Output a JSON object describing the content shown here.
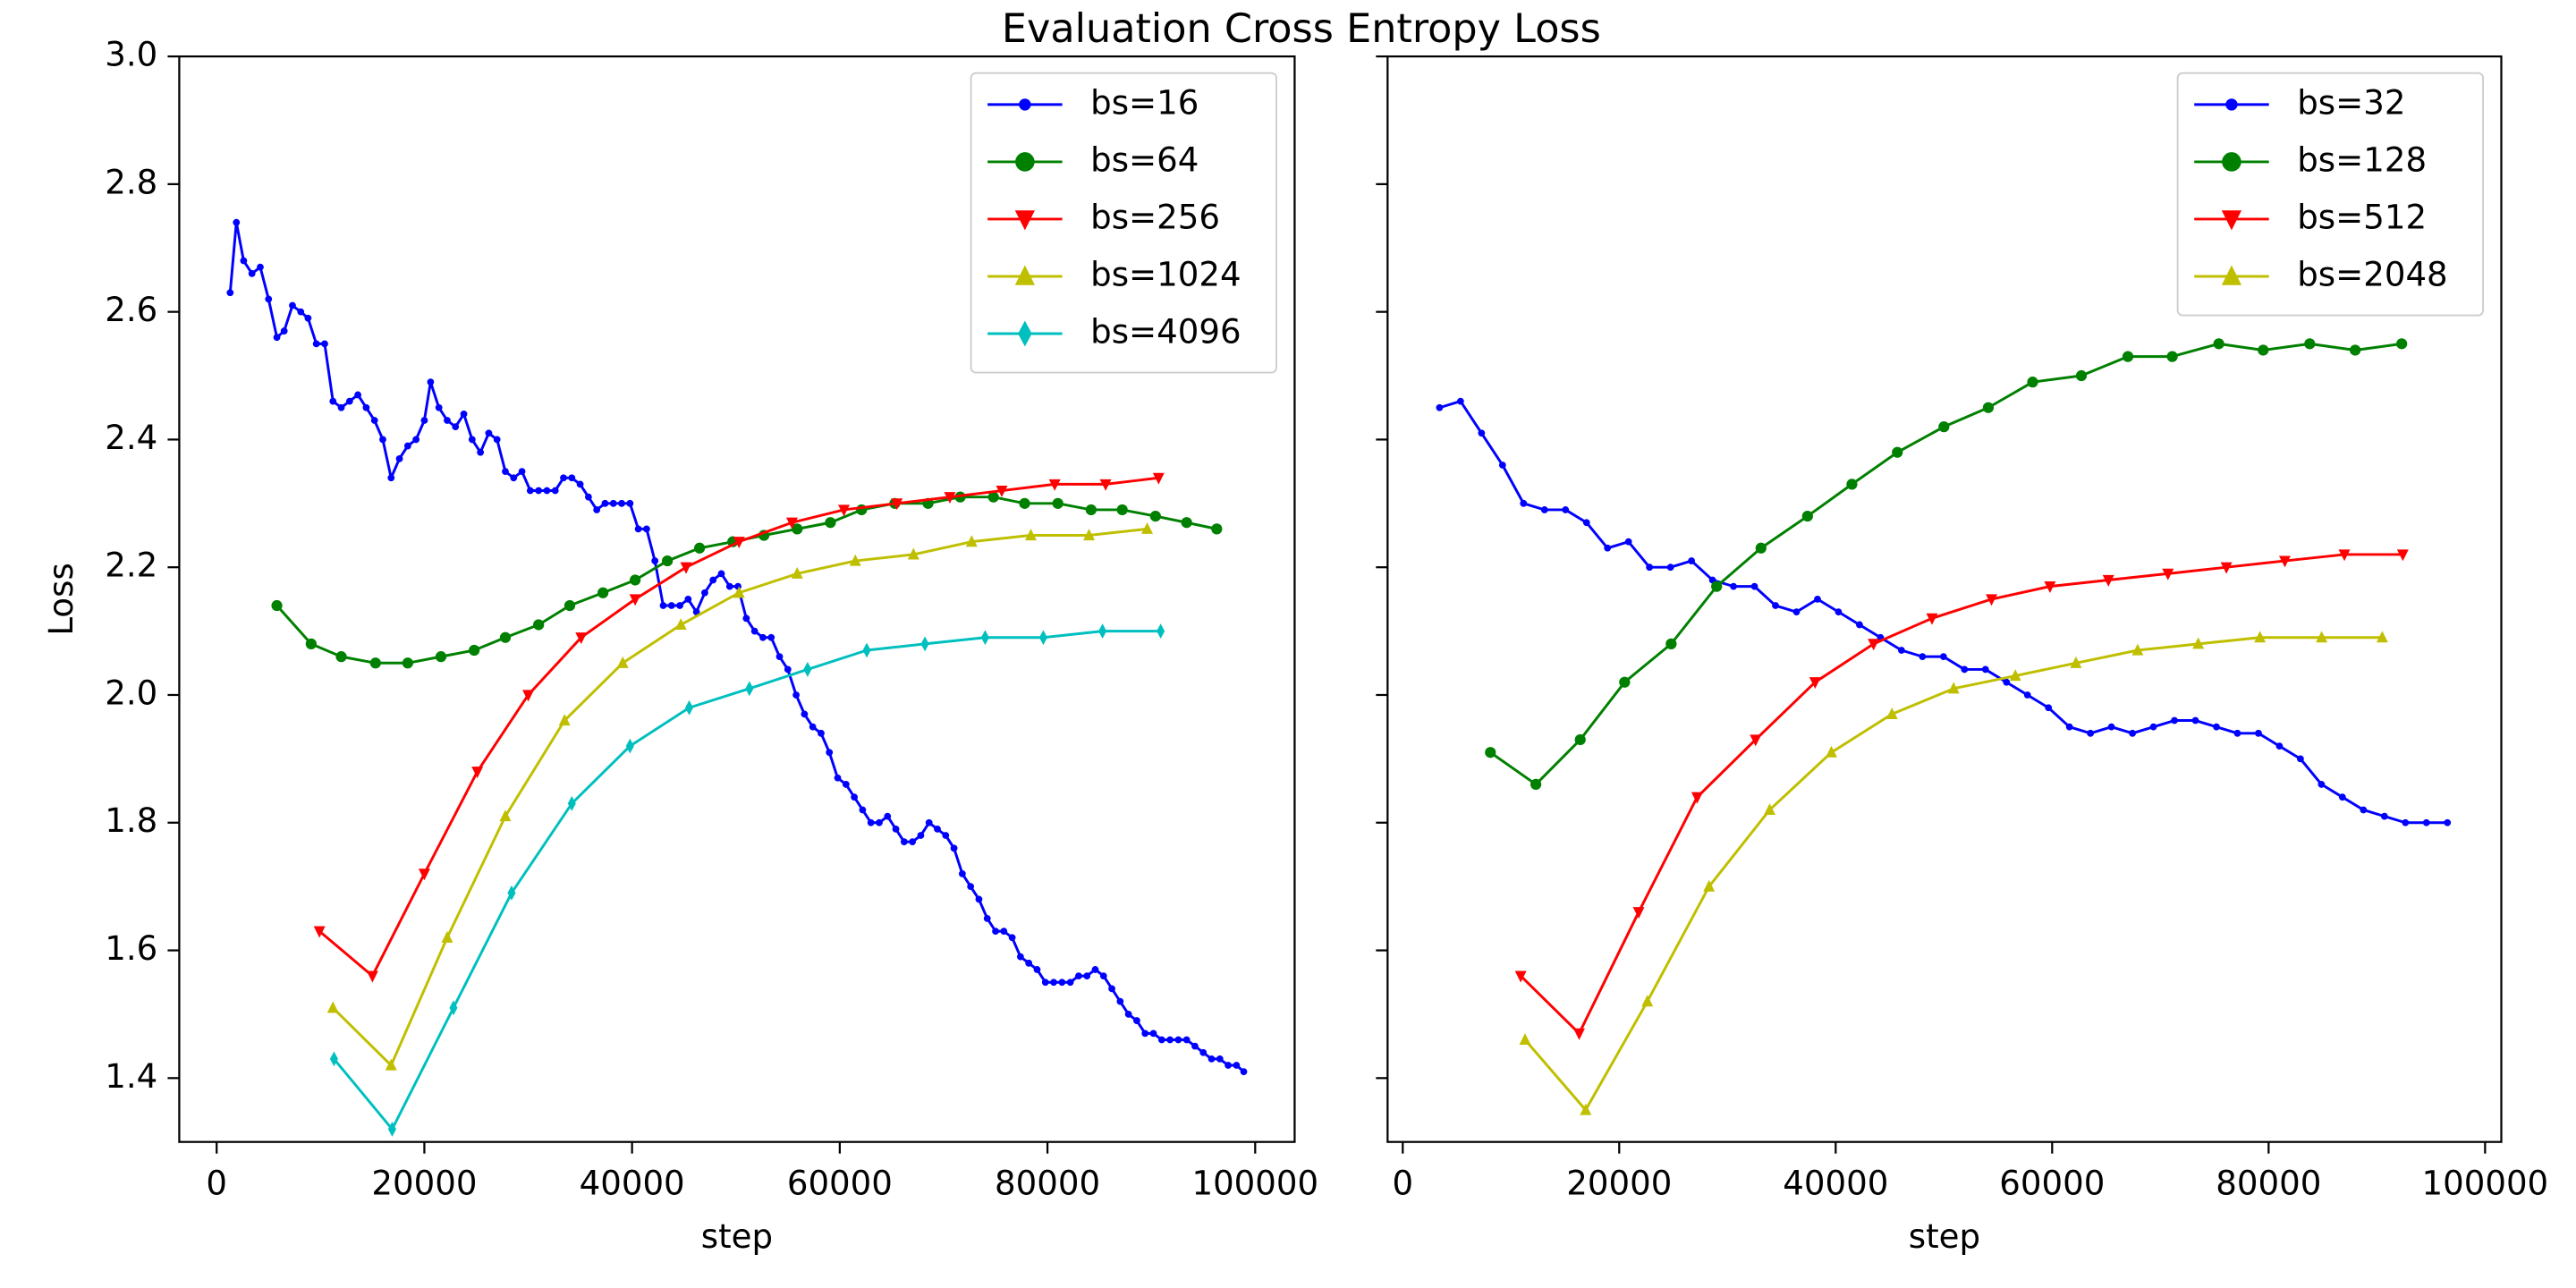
{
  "title": "Evaluation Cross Entropy Loss",
  "chart_data": [
    {
      "type": "line",
      "xlabel": "step",
      "ylabel": "Loss",
      "xlim": [
        -3600,
        103800
      ],
      "ylim": [
        1.3,
        3.0
      ],
      "xticks": [
        0,
        20000,
        40000,
        60000,
        80000,
        100000
      ],
      "yticks": [
        1.4,
        1.6,
        1.8,
        {
          "value": 2,
          "label": "2.0"
        },
        2.2,
        2.4,
        2.6,
        2.8,
        {
          "value": 3,
          "label": "3.0"
        }
      ],
      "legend": "upper right",
      "series": [
        {
          "name": "bs=16",
          "color": "#0000ff",
          "marker": ".",
          "x": [
            1300,
            1900,
            2600,
            3400,
            4200,
            5000,
            5800,
            6500,
            7300,
            8100,
            8800,
            9600,
            10400,
            11200,
            12000,
            12800,
            13600,
            14400,
            15200,
            16000,
            16800,
            17600,
            18400,
            19200,
            20000,
            20600,
            21400,
            22200,
            23000,
            23800,
            24600,
            25400,
            26200,
            27000,
            27800,
            28600,
            29400,
            30200,
            31000,
            31800,
            32600,
            33400,
            34200,
            35000,
            35800,
            36600,
            37400,
            38200,
            39000,
            39800,
            40600,
            41400,
            42200,
            43000,
            43800,
            44600,
            45400,
            46200,
            47000,
            47800,
            48600,
            49400,
            50200,
            51000,
            51800,
            52600,
            53400,
            54200,
            55000,
            55800,
            56600,
            57400,
            58200,
            59000,
            59800,
            60600,
            61400,
            62200,
            63000,
            63800,
            64600,
            65400,
            66200,
            67000,
            67800,
            68600,
            69400,
            70200,
            71000,
            71800,
            72600,
            73400,
            74200,
            75000,
            75800,
            76600,
            77400,
            78200,
            79000,
            79800,
            80600,
            81400,
            82200,
            83000,
            83800,
            84600,
            85400,
            86200,
            87000,
            87800,
            88600,
            89400,
            90200,
            91000,
            91800,
            92600,
            93400,
            94200,
            95000,
            95800,
            96600,
            97400,
            98200,
            98900
          ],
          "values": [
            2.63,
            2.74,
            2.68,
            2.66,
            2.67,
            2.62,
            2.56,
            2.57,
            2.61,
            2.6,
            2.59,
            2.55,
            2.55,
            2.46,
            2.45,
            2.46,
            2.47,
            2.45,
            2.43,
            2.4,
            2.34,
            2.37,
            2.39,
            2.4,
            2.43,
            2.49,
            2.45,
            2.43,
            2.42,
            2.44,
            2.4,
            2.38,
            2.41,
            2.4,
            2.35,
            2.34,
            2.35,
            2.32,
            2.32,
            2.32,
            2.32,
            2.34,
            2.34,
            2.33,
            2.31,
            2.29,
            2.3,
            2.3,
            2.3,
            2.3,
            2.26,
            2.26,
            2.21,
            2.14,
            2.14,
            2.14,
            2.15,
            2.13,
            2.16,
            2.18,
            2.19,
            2.17,
            2.17,
            2.12,
            2.1,
            2.09,
            2.09,
            2.06,
            2.04,
            2.0,
            1.97,
            1.95,
            1.94,
            1.91,
            1.87,
            1.86,
            1.84,
            1.82,
            1.8,
            1.8,
            1.81,
            1.79,
            1.77,
            1.77,
            1.78,
            1.8,
            1.79,
            1.78,
            1.76,
            1.72,
            1.7,
            1.68,
            1.65,
            1.63,
            1.63,
            1.62,
            1.59,
            1.58,
            1.57,
            1.55,
            1.55,
            1.55,
            1.55,
            1.56,
            1.56,
            1.57,
            1.56,
            1.54,
            1.52,
            1.5,
            1.49,
            1.47,
            1.47,
            1.46,
            1.46,
            1.46,
            1.46,
            1.45,
            1.44,
            1.43,
            1.43,
            1.42,
            1.42,
            1.41
          ]
        },
        {
          "name": "bs=64",
          "color": "#008000",
          "marker": "o",
          "x": [
            5800,
            9100,
            12000,
            15300,
            18400,
            21600,
            24800,
            27800,
            31000,
            34000,
            37200,
            40300,
            43400,
            46500,
            49700,
            52700,
            55900,
            59100,
            62100,
            65300,
            68500,
            71600,
            74800,
            77800,
            81000,
            84200,
            87200,
            90400,
            93400,
            96300
          ],
          "values": [
            2.14,
            2.08,
            2.06,
            2.05,
            2.05,
            2.06,
            2.07,
            2.09,
            2.11,
            2.14,
            2.16,
            2.18,
            2.21,
            2.23,
            2.24,
            2.25,
            2.26,
            2.27,
            2.29,
            2.3,
            2.3,
            2.31,
            2.31,
            2.3,
            2.3,
            2.29,
            2.29,
            2.28,
            2.27,
            2.26
          ]
        },
        {
          "name": "bs=256",
          "color": "#ff0000",
          "marker": "v",
          "x": [
            9900,
            15000,
            20000,
            25100,
            30000,
            35100,
            40300,
            45200,
            50300,
            55400,
            60400,
            65500,
            70600,
            75600,
            80700,
            85600,
            90700
          ],
          "values": [
            1.63,
            1.56,
            1.72,
            1.88,
            2.0,
            2.09,
            2.15,
            2.2,
            2.24,
            2.27,
            2.29,
            2.3,
            2.31,
            2.32,
            2.33,
            2.33,
            2.34
          ]
        },
        {
          "name": "bs=1024",
          "color": "#bfbf00",
          "marker": "^",
          "x": [
            11200,
            16800,
            22200,
            27800,
            33500,
            39100,
            44700,
            50300,
            55900,
            61500,
            67100,
            72700,
            78400,
            84000,
            89600
          ],
          "values": [
            1.51,
            1.42,
            1.62,
            1.81,
            1.96,
            2.05,
            2.11,
            2.16,
            2.19,
            2.21,
            2.22,
            2.24,
            2.25,
            2.25,
            2.26
          ]
        },
        {
          "name": "bs=4096",
          "color": "#00bfbf",
          "marker": "d",
          "x": [
            11300,
            16900,
            22800,
            28400,
            34200,
            39800,
            45500,
            51300,
            56900,
            62600,
            68200,
            74000,
            79600,
            85300,
            90900
          ],
          "values": [
            1.43,
            1.32,
            1.51,
            1.69,
            1.83,
            1.92,
            1.98,
            2.01,
            2.04,
            2.07,
            2.08,
            2.09,
            2.09,
            2.1,
            2.1
          ]
        }
      ]
    },
    {
      "type": "line",
      "xlabel": "step",
      "xlim": [
        -1400,
        101500
      ],
      "ylim": [
        1.3,
        3.0
      ],
      "xticks": [
        0,
        20000,
        40000,
        60000,
        80000,
        100000
      ],
      "yticks": [
        1.4,
        1.6,
        1.8,
        2,
        2.2,
        2.4,
        2.6,
        2.8,
        3
      ],
      "show_ytick_labels": false,
      "legend": "upper right",
      "series": [
        {
          "name": "bs=32",
          "color": "#0000ff",
          "marker": ".",
          "x": [
            3400,
            5340,
            7280,
            9220,
            11160,
            13100,
            15040,
            16980,
            18920,
            20860,
            22800,
            24740,
            26680,
            28620,
            30560,
            32500,
            34440,
            36380,
            38320,
            40260,
            42200,
            44140,
            46080,
            48020,
            49960,
            51900,
            53840,
            55780,
            57720,
            59660,
            61600,
            63540,
            65480,
            67420,
            69360,
            71300,
            73240,
            75180,
            77120,
            79060,
            81000,
            82940,
            84880,
            86820,
            88760,
            90700,
            92640,
            94580,
            96520
          ],
          "values": [
            2.45,
            2.46,
            2.41,
            2.36,
            2.3,
            2.29,
            2.29,
            2.27,
            2.23,
            2.24,
            2.2,
            2.2,
            2.21,
            2.18,
            2.17,
            2.17,
            2.14,
            2.13,
            2.15,
            2.13,
            2.11,
            2.09,
            2.07,
            2.06,
            2.06,
            2.04,
            2.04,
            2.02,
            2.0,
            1.98,
            1.95,
            1.94,
            1.95,
            1.94,
            1.95,
            1.96,
            1.96,
            1.95,
            1.94,
            1.94,
            1.92,
            1.9,
            1.86,
            1.84,
            1.82,
            1.81,
            1.8,
            1.8,
            1.8
          ]
        },
        {
          "name": "bs=128",
          "color": "#008000",
          "marker": "o",
          "x": [
            8100,
            12300,
            16400,
            20500,
            24800,
            29000,
            33100,
            37400,
            41500,
            45700,
            50000,
            54100,
            58200,
            62700,
            67000,
            71100,
            75400,
            79500,
            83800,
            88000,
            92300
          ],
          "values": [
            1.91,
            1.86,
            1.93,
            2.02,
            2.08,
            2.17,
            2.23,
            2.28,
            2.33,
            2.38,
            2.42,
            2.45,
            2.49,
            2.5,
            2.53,
            2.53,
            2.55,
            2.54,
            2.55,
            2.54,
            2.55
          ]
        },
        {
          "name": "bs=512",
          "color": "#ff0000",
          "marker": "v",
          "x": [
            10900,
            16300,
            21800,
            27200,
            32600,
            38100,
            43500,
            48900,
            54400,
            59800,
            65200,
            70700,
            76100,
            81500,
            87000,
            92400
          ],
          "values": [
            1.56,
            1.47,
            1.66,
            1.84,
            1.93,
            2.02,
            2.08,
            2.12,
            2.15,
            2.17,
            2.18,
            2.19,
            2.2,
            2.21,
            2.22,
            2.22
          ]
        },
        {
          "name": "bs=2048",
          "color": "#bfbf00",
          "marker": "^",
          "x": [
            11300,
            16900,
            22600,
            28300,
            33900,
            39600,
            45200,
            50900,
            56600,
            62200,
            67900,
            73500,
            79200,
            84900,
            90500
          ],
          "values": [
            1.46,
            1.35,
            1.52,
            1.7,
            1.82,
            1.91,
            1.97,
            2.01,
            2.03,
            2.05,
            2.07,
            2.08,
            2.09,
            2.09,
            2.09
          ]
        }
      ]
    }
  ]
}
